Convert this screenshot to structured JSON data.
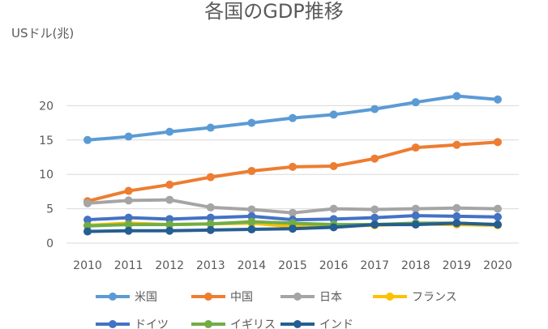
{
  "chart_data": {
    "type": "line",
    "title": "各国のGDP推移",
    "xlabel": "",
    "ylabel": "USドル(兆)",
    "x": [
      "2010",
      "2011",
      "2012",
      "2013",
      "2014",
      "2015",
      "2016",
      "2017",
      "2018",
      "2019",
      "2020"
    ],
    "yticks": [
      "0",
      "5",
      "10",
      "15",
      "20"
    ],
    "ylim": [
      0,
      25
    ],
    "grid": true,
    "legend_position": "bottom",
    "series": [
      {
        "name": "米国",
        "color": "#5B9BD5",
        "values": [
          15.0,
          15.5,
          16.2,
          16.8,
          17.5,
          18.2,
          18.7,
          19.5,
          20.5,
          21.4,
          20.9
        ]
      },
      {
        "name": "中国",
        "color": "#ED7D31",
        "values": [
          6.1,
          7.6,
          8.5,
          9.6,
          10.5,
          11.1,
          11.2,
          12.3,
          13.9,
          14.3,
          14.7
        ]
      },
      {
        "name": "日本",
        "color": "#A5A5A5",
        "values": [
          5.8,
          6.2,
          6.3,
          5.2,
          4.9,
          4.4,
          5.0,
          4.9,
          5.0,
          5.1,
          5.0
        ]
      },
      {
        "name": "フランス",
        "color": "#FFC000",
        "values": [
          2.6,
          2.9,
          2.7,
          2.8,
          2.9,
          2.4,
          2.5,
          2.6,
          2.8,
          2.7,
          2.6
        ]
      },
      {
        "name": "ドイツ",
        "color": "#4472C4",
        "values": [
          3.4,
          3.7,
          3.5,
          3.7,
          3.9,
          3.4,
          3.5,
          3.7,
          4.0,
          3.9,
          3.8
        ]
      },
      {
        "name": "イギリス",
        "color": "#70AD47",
        "values": [
          2.5,
          2.7,
          2.7,
          2.8,
          3.1,
          2.9,
          2.7,
          2.7,
          2.9,
          2.9,
          2.7
        ]
      },
      {
        "name": "インド",
        "color": "#255E91",
        "values": [
          1.7,
          1.8,
          1.8,
          1.9,
          2.0,
          2.1,
          2.3,
          2.7,
          2.7,
          2.9,
          2.7
        ]
      }
    ]
  }
}
